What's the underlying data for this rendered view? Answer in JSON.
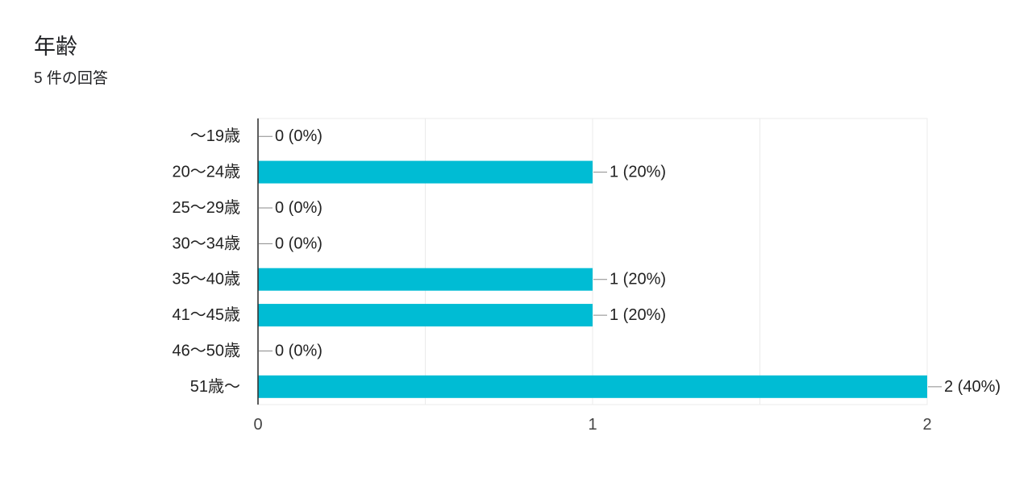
{
  "chart_data": {
    "type": "bar",
    "orientation": "horizontal",
    "title": "年齢",
    "subtitle": "5 件の回答",
    "categories": [
      "～19歳",
      "20～24歳",
      "25～29歳",
      "30～34歳",
      "35～40歳",
      "41～45歳",
      "46～50歳",
      "51歳～"
    ],
    "values": [
      0,
      1,
      0,
      0,
      1,
      1,
      0,
      2
    ],
    "data_labels": [
      "0 (0%)",
      "1 (20%)",
      "0 (0%)",
      "0 (0%)",
      "1 (20%)",
      "1 (20%)",
      "0 (0%)",
      "2 (40%)"
    ],
    "xlim": [
      0,
      2
    ],
    "xticks": [
      0,
      1,
      2
    ],
    "xlabel": "",
    "ylabel": "",
    "grid": true,
    "legend": "none",
    "colors": {
      "bar": "#00BCD4",
      "axis": "#333333",
      "gridline": "#ebebeb",
      "leader_line": "#8a8a8a",
      "label_text": "#222222",
      "tick_text": "#444444"
    }
  }
}
